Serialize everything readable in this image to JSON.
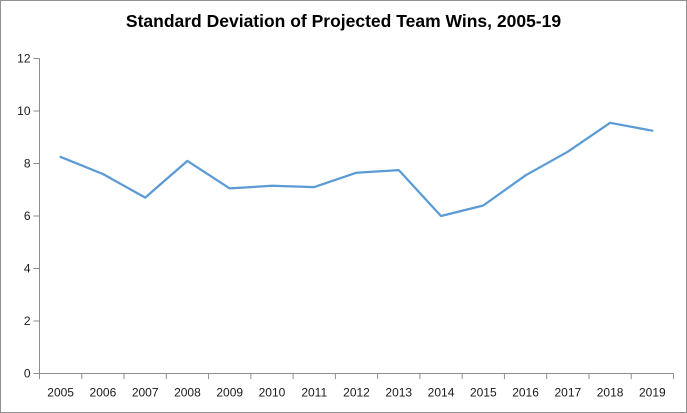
{
  "title": "Standard Deviation of Projected Team Wins, 2005-19",
  "colors": {
    "series_line": "#5B9BD5",
    "axis": "#8C8C8C",
    "tick_label": "#1a1a1a",
    "title_text": "#000000",
    "frame_border": "#919191",
    "background": "#ffffff"
  },
  "chart_data": {
    "type": "line",
    "title": "Standard Deviation of Projected Team Wins, 2005-19",
    "categories": [
      "2005",
      "2006",
      "2007",
      "2008",
      "2009",
      "2010",
      "2011",
      "2012",
      "2013",
      "2014",
      "2015",
      "2016",
      "2017",
      "2018",
      "2019"
    ],
    "values": [
      8.25,
      7.6,
      6.7,
      8.1,
      7.05,
      7.15,
      7.1,
      7.65,
      7.75,
      6.0,
      6.4,
      7.55,
      8.45,
      9.55,
      9.25
    ],
    "series_name": "Standard deviation of projected team wins",
    "xlabel": "",
    "ylabel": "",
    "ylim": [
      0,
      12
    ],
    "yticks": [
      0,
      2,
      4,
      6,
      8,
      10,
      12
    ],
    "grid": false,
    "legend_position": "none"
  }
}
